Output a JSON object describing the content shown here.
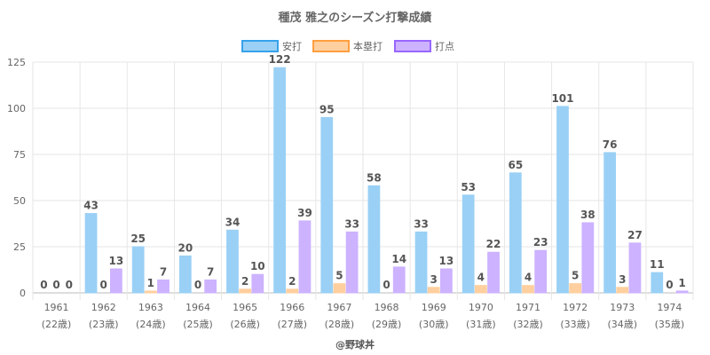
{
  "chart_data": {
    "type": "bar",
    "title": "種茂 雅之のシーズン打撃成績",
    "categories": [
      "1961",
      "1962",
      "1963",
      "1964",
      "1965",
      "1966",
      "1967",
      "1968",
      "1969",
      "1970",
      "1971",
      "1972",
      "1973",
      "1974"
    ],
    "category_sublabels": [
      "(22歳)",
      "(23歳)",
      "(24歳)",
      "(25歳)",
      "(26歳)",
      "(27歳)",
      "(28歳)",
      "(29歳)",
      "(30歳)",
      "(31歳)",
      "(32歳)",
      "(33歳)",
      "(34歳)",
      "(35歳)"
    ],
    "series": [
      {
        "name": "安打",
        "fill": "#9ad0f5",
        "border": "#36a2eb",
        "values": [
          0,
          43,
          25,
          20,
          34,
          122,
          95,
          58,
          33,
          53,
          65,
          101,
          76,
          11
        ]
      },
      {
        "name": "本塁打",
        "fill": "#ffcf9f",
        "border": "#ff9f40",
        "values": [
          0,
          0,
          1,
          0,
          2,
          2,
          5,
          0,
          3,
          4,
          4,
          5,
          3,
          0
        ]
      },
      {
        "name": "打点",
        "fill": "#ccb2ff",
        "border": "#9966ff",
        "values": [
          0,
          13,
          7,
          7,
          10,
          39,
          33,
          14,
          13,
          22,
          23,
          38,
          27,
          1
        ]
      }
    ],
    "xlabel": "",
    "ylabel": "",
    "ylim": [
      0,
      125
    ],
    "yticks": [
      0,
      25,
      50,
      75,
      100,
      125
    ],
    "grid": true,
    "legend_position": "top",
    "data_labels": true
  },
  "footer": {
    "credit": "@野球丼"
  }
}
